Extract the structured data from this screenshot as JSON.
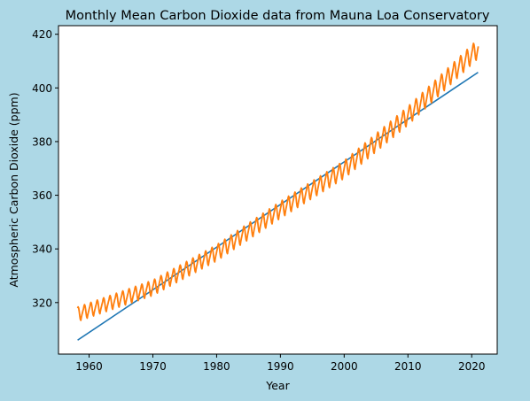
{
  "colors": {
    "figure_background": "#add8e6",
    "axes_background": "#ffffff",
    "trend_line": "#1f77b4",
    "data_line": "#ff7f0e",
    "axis": "#000000"
  },
  "chart_data": {
    "type": "line",
    "title": "Monthly Mean Carbon Dioxide data from Mauna Loa Conservatory",
    "xlabel": "Year",
    "ylabel": "Atmospheric Carbon Dioxide (ppm)",
    "xlim": [
      1955.2,
      2024.0
    ],
    "ylim": [
      300.8,
      423.2
    ],
    "xticks": [
      1960,
      1970,
      1980,
      1990,
      2000,
      2010,
      2020
    ],
    "yticks": [
      320,
      340,
      360,
      380,
      400,
      420
    ],
    "grid": false,
    "legend": false,
    "series": [
      {
        "kind": "linear-trend",
        "color": "#1f77b4",
        "x": [
          1958.2,
          2021.0
        ],
        "y": [
          306.0,
          405.8
        ]
      },
      {
        "kind": "monthly-mean",
        "color": "#ff7f0e",
        "x_start": 1958.2,
        "x_end": 2021.0,
        "samples_per_year": 12,
        "trend_knots": {
          "x": [
            1958,
            1970,
            1980,
            1990,
            2000,
            2010,
            2021
          ],
          "y": [
            315,
            325,
            338,
            354,
            369,
            389,
            414
          ]
        },
        "seasonal_monthly_offsets": [
          0.4,
          1.3,
          2.0,
          3.2,
          3.7,
          3.1,
          1.6,
          -0.4,
          -2.0,
          -2.6,
          -1.4,
          -0.4
        ],
        "seasonal_scale_start": 0.85,
        "seasonal_scale_end": 1.15
      }
    ]
  }
}
